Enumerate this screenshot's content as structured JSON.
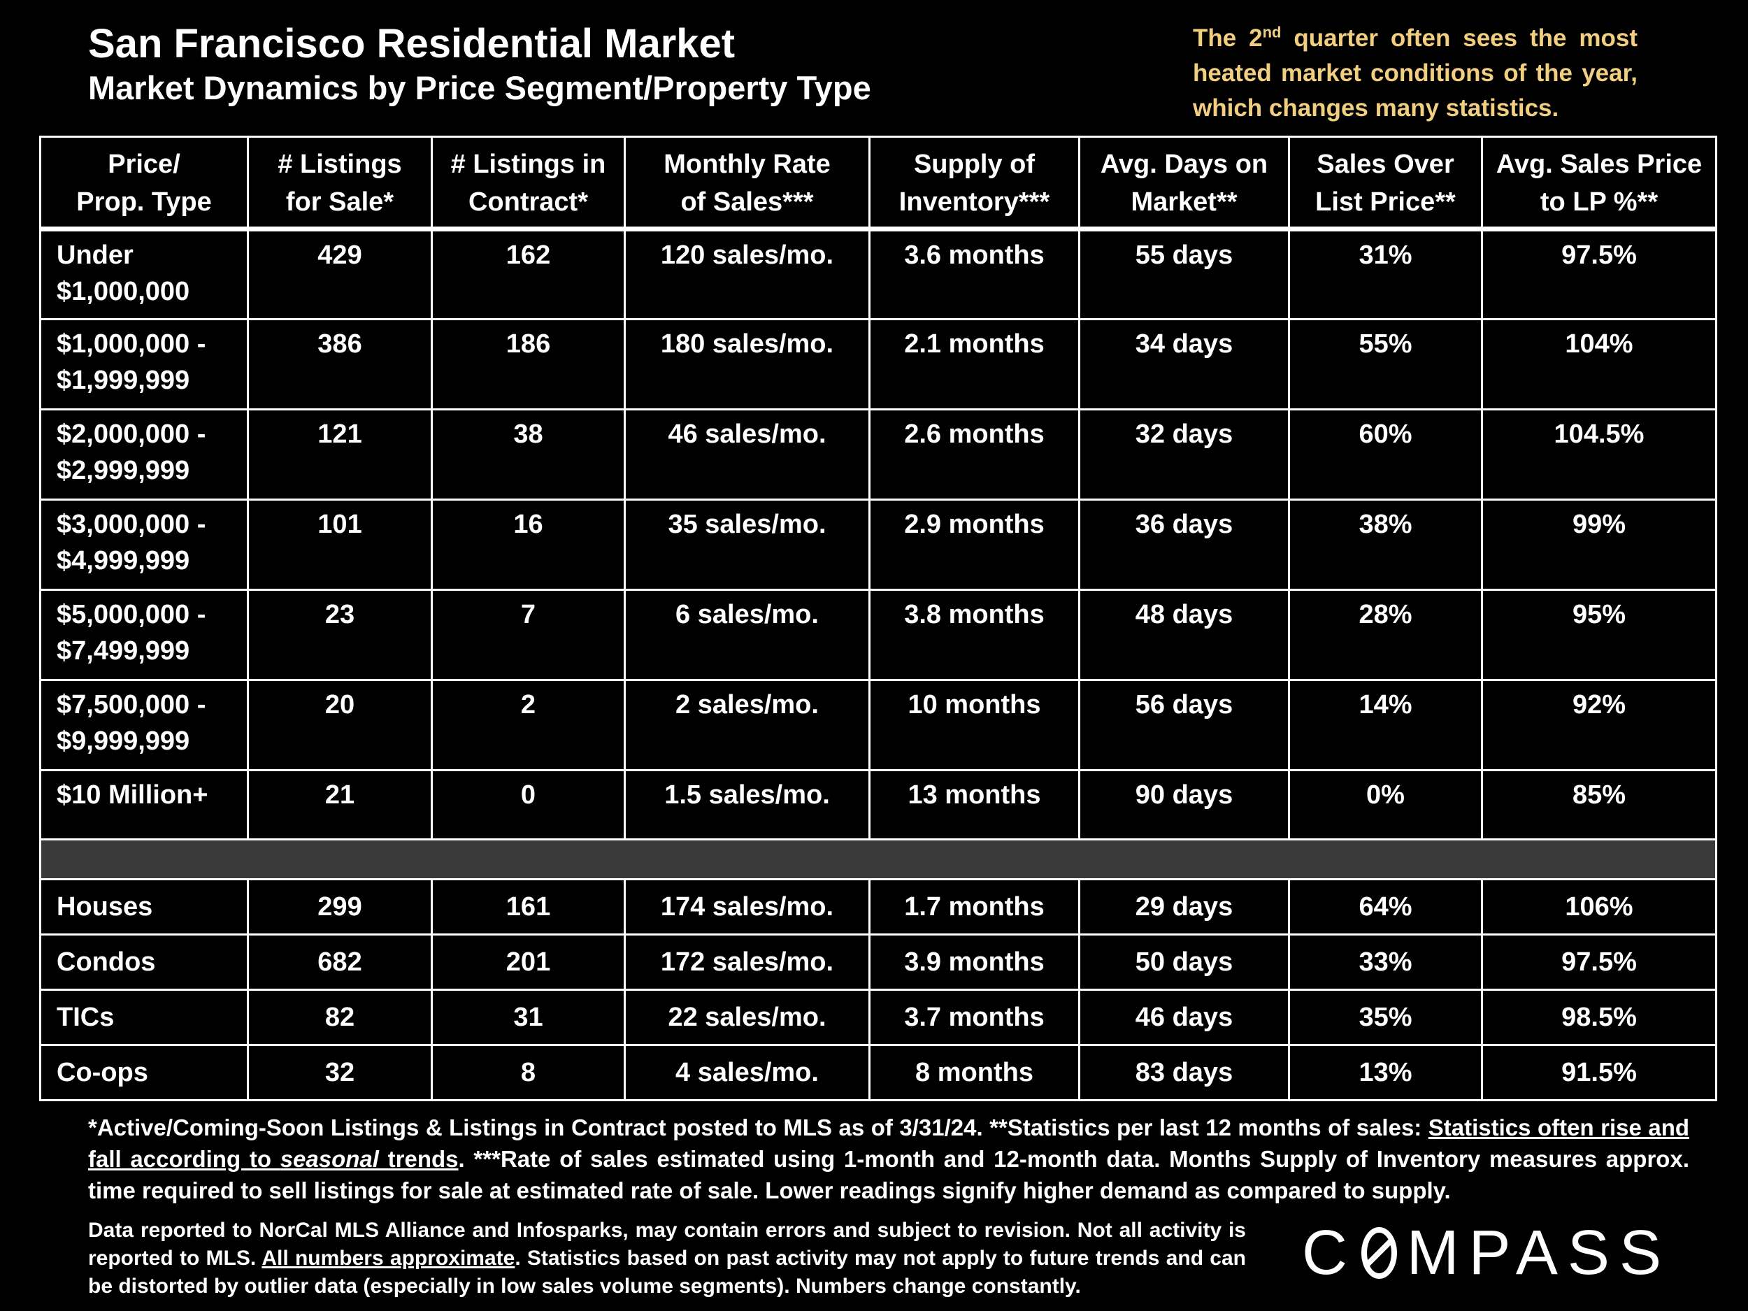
{
  "header": {
    "title": "San Francisco Residential Market",
    "subtitle": "Market Dynamics by Price Segment/Property Type",
    "note_pre": "The 2",
    "note_sup": "nd",
    "note_post": " quarter often sees the most heated market conditions of the year, which changes many statistics."
  },
  "table": {
    "columns": [
      [
        "Price/",
        "Prop. Type"
      ],
      [
        "# Listings",
        "for Sale*"
      ],
      [
        "# Listings in",
        "Contract*"
      ],
      [
        "Monthly Rate",
        "of Sales***"
      ],
      [
        "Supply of",
        "Inventory***"
      ],
      [
        "Avg. Days on",
        "Market**"
      ],
      [
        "Sales Over",
        "List Price**"
      ],
      [
        "Avg. Sales Price",
        "to LP %**"
      ]
    ],
    "price_segments": [
      {
        "label": [
          "Under",
          "$1,000,000"
        ],
        "listings": "429",
        "contract": "162",
        "rate": "120 sales/mo.",
        "supply": "3.6 months",
        "dom": "55 days",
        "over_list": "31%",
        "sp_lp": "97.5%"
      },
      {
        "label": [
          "$1,000,000 -",
          "$1,999,999"
        ],
        "listings": "386",
        "contract": "186",
        "rate": "180 sales/mo.",
        "supply": "2.1 months",
        "dom": "34 days",
        "over_list": "55%",
        "sp_lp": "104%"
      },
      {
        "label": [
          "$2,000,000 -",
          "$2,999,999"
        ],
        "listings": "121",
        "contract": "38",
        "rate": "46 sales/mo.",
        "supply": "2.6 months",
        "dom": "32 days",
        "over_list": "60%",
        "sp_lp": "104.5%"
      },
      {
        "label": [
          "$3,000,000 -",
          "$4,999,999"
        ],
        "listings": "101",
        "contract": "16",
        "rate": "35 sales/mo.",
        "supply": "2.9 months",
        "dom": "36 days",
        "over_list": "38%",
        "sp_lp": "99%"
      },
      {
        "label": [
          "$5,000,000 -",
          "$7,499,999"
        ],
        "listings": "23",
        "contract": "7",
        "rate": "6 sales/mo.",
        "supply": "3.8 months",
        "dom": "48 days",
        "over_list": "28%",
        "sp_lp": "95%"
      },
      {
        "label": [
          "$7,500,000 -",
          "$9,999,999"
        ],
        "listings": "20",
        "contract": "2",
        "rate": "2 sales/mo.",
        "supply": "10 months",
        "dom": "56 days",
        "over_list": "14%",
        "sp_lp": "92%"
      },
      {
        "label": [
          "$10 Million+",
          ""
        ],
        "listings": "21",
        "contract": "0",
        "rate": "1.5 sales/mo.",
        "supply": "13 months",
        "dom": "90 days",
        "over_list": "0%",
        "sp_lp": "85%"
      }
    ],
    "property_types": [
      {
        "label": "Houses",
        "listings": "299",
        "contract": "161",
        "rate": "174 sales/mo.",
        "supply": "1.7 months",
        "dom": "29 days",
        "over_list": "64%",
        "sp_lp": "106%"
      },
      {
        "label": "Condos",
        "listings": "682",
        "contract": "201",
        "rate": "172 sales/mo.",
        "supply": "3.9 months",
        "dom": "50 days",
        "over_list": "33%",
        "sp_lp": "97.5%"
      },
      {
        "label": "TICs",
        "listings": "82",
        "contract": "31",
        "rate": "22 sales/mo.",
        "supply": "3.7 months",
        "dom": "46 days",
        "over_list": "35%",
        "sp_lp": "98.5%"
      },
      {
        "label": "Co-ops",
        "listings": "32",
        "contract": "8",
        "rate": "4 sales/mo.",
        "supply": "8 months",
        "dom": "83 days",
        "over_list": "13%",
        "sp_lp": "91.5%"
      }
    ]
  },
  "footnote": {
    "part1": "*Active/Coming-Soon Listings & Listings in Contract posted to MLS as of 3/31/24. **Statistics per last 12 months of sales: ",
    "underline1": "Statistics often rise and fall according to ",
    "underline_italic": "seasonal",
    "underline2": " trends",
    "part2": ".  ***Rate of sales estimated using 1-month and 12-month data. Months Supply of Inventory measures approx. time required to sell listings for sale at estimated rate of sale. Lower readings signify higher demand as compared to supply."
  },
  "disclaimer": {
    "part1": "Data reported to NorCal MLS Alliance and Infosparks, may contain errors and subject to revision.  Not all activity is reported to MLS. ",
    "underline": "All numbers approximate",
    "part2": ". Statistics based on past activity may not apply to future trends and can be distorted by outlier data (especially in low sales volume segments). Numbers change constantly."
  },
  "logo": {
    "text_left": "C",
    "text_right": "MPASS",
    "icon": "compass-o-slash-icon"
  }
}
